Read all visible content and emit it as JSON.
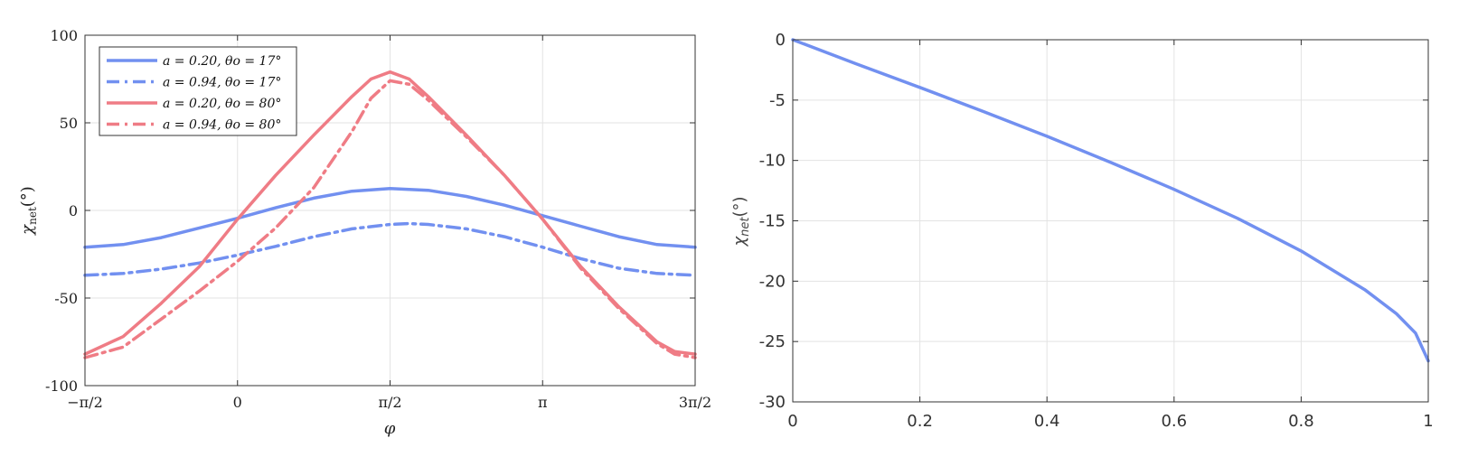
{
  "colors": {
    "blue": "#7290f0",
    "red": "#ef7c85",
    "grid": "#e3e3e3",
    "axis": "#333333"
  },
  "chart_data": [
    {
      "type": "line",
      "xlabel": "φ",
      "ylabel": "χ_net(°)",
      "ylabel_main": "χ",
      "ylabel_sub": "net",
      "ylabel_tail": "(°)",
      "xlim": [
        -1.5708,
        4.7124
      ],
      "ylim": [
        -100,
        100
      ],
      "xticks": [
        -1.5708,
        0,
        1.5708,
        3.1416,
        4.7124
      ],
      "xtick_labels": [
        "−π/2",
        "0",
        "π/2",
        "π",
        "3π/2"
      ],
      "yticks": [
        -100,
        -50,
        0,
        50,
        100
      ],
      "ytick_labels": [
        "-100",
        "-50",
        "0",
        "50",
        "100"
      ],
      "grid": true,
      "legend_position": "top-left",
      "series": [
        {
          "name": "a = 0.20, θo = 17°",
          "color": "#7290f0",
          "dash": "solid",
          "x": [
            -1.5708,
            -1.1781,
            -0.7854,
            -0.3927,
            0,
            0.3927,
            0.7854,
            1.1781,
            1.5708,
            1.9635,
            2.3562,
            2.7489,
            3.1416,
            3.5343,
            3.927,
            4.3197,
            4.7124
          ],
          "y": [
            -21,
            -19.5,
            -15.5,
            -10,
            -4.5,
            1.5,
            7,
            11,
            12.5,
            11.5,
            8,
            3,
            -3,
            -9,
            -15,
            -19.5,
            -21
          ]
        },
        {
          "name": "a = 0.94, θo = 17°",
          "color": "#7290f0",
          "dash": "dashdot",
          "x": [
            -1.5708,
            -1.1781,
            -0.7854,
            -0.3927,
            0,
            0.3927,
            0.7854,
            1.1781,
            1.5708,
            1.7671,
            1.9635,
            2.3562,
            2.7489,
            3.1416,
            3.5343,
            3.927,
            4.3197,
            4.7124
          ],
          "y": [
            -37,
            -36,
            -33.5,
            -30,
            -25.5,
            -20.5,
            -15,
            -10.5,
            -8,
            -7.5,
            -8,
            -10.5,
            -15,
            -21,
            -27.5,
            -33,
            -36,
            -37
          ]
        },
        {
          "name": "a = 0.20, θo = 80°",
          "color": "#ef7c85",
          "dash": "solid",
          "x": [
            -1.5708,
            -1.1781,
            -0.7854,
            -0.3927,
            0,
            0.3927,
            0.7854,
            1.1781,
            1.3744,
            1.5708,
            1.7671,
            1.9635,
            2.3562,
            2.7489,
            3.1416,
            3.5343,
            3.927,
            4.3197,
            4.5,
            4.7124
          ],
          "y": [
            -82,
            -72,
            -53,
            -32,
            -5,
            20,
            43,
            65,
            75,
            79,
            75,
            65,
            43,
            20,
            -5,
            -32,
            -55,
            -75,
            -80.5,
            -82
          ]
        },
        {
          "name": "a = 0.94, θo = 80°",
          "color": "#ef7c85",
          "dash": "dashdot",
          "x": [
            -1.5708,
            -1.1781,
            -0.7854,
            -0.3927,
            0,
            0.3927,
            0.7854,
            1.1781,
            1.3744,
            1.5708,
            1.7671,
            1.9635,
            2.3562,
            2.7489,
            3.1416,
            3.5343,
            3.927,
            4.3197,
            4.5,
            4.7124
          ],
          "y": [
            -84,
            -78,
            -62,
            -46,
            -29,
            -10,
            13,
            45,
            64,
            74,
            72,
            63,
            42,
            20,
            -5,
            -33,
            -56,
            -76,
            -82,
            -84
          ]
        }
      ]
    },
    {
      "type": "line",
      "xlabel": "",
      "ylabel": "χnet(°)",
      "ylabel_main": "χ",
      "ylabel_sub": "net",
      "ylabel_tail": "(°)",
      "xlim": [
        0,
        1
      ],
      "ylim": [
        -30,
        0
      ],
      "xticks": [
        0,
        0.2,
        0.4,
        0.6,
        0.8,
        1
      ],
      "xtick_labels": [
        "0",
        "0.2",
        "0.4",
        "0.6",
        "0.8",
        "1"
      ],
      "yticks": [
        0,
        -5,
        -10,
        -15,
        -20,
        -25,
        -30
      ],
      "ytick_labels": [
        "0",
        "-5",
        "-10",
        "-15",
        "-20",
        "-25",
        "-30"
      ],
      "grid": true,
      "series": [
        {
          "color": "#7290f0",
          "dash": "solid",
          "x": [
            0,
            0.1,
            0.2,
            0.3,
            0.4,
            0.5,
            0.6,
            0.7,
            0.8,
            0.9,
            0.95,
            0.98,
            1.0
          ],
          "y": [
            0,
            -2,
            -3.95,
            -5.95,
            -8.0,
            -10.15,
            -12.4,
            -14.8,
            -17.5,
            -20.7,
            -22.7,
            -24.3,
            -26.6
          ]
        }
      ]
    }
  ]
}
